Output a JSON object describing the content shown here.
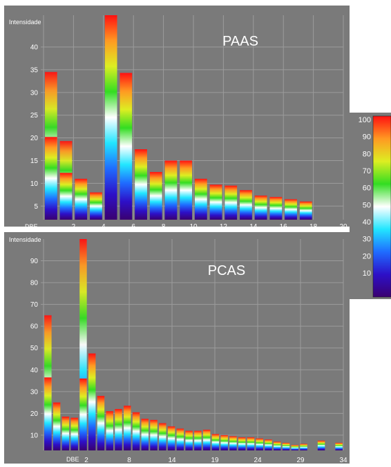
{
  "colors": {
    "panel_bg": "#7a7a7a",
    "grid": "#9c9c9c",
    "tick_text": "#ffffff",
    "title_text": "#ffffff"
  },
  "colorbar": {
    "labels": [
      "100",
      "90",
      "80",
      "70",
      "60",
      "50",
      "40",
      "30",
      "20",
      "10"
    ],
    "stops": [
      "#3a0070",
      "#2d10c8",
      "#1f6cff",
      "#22e6ff",
      "#ffffff",
      "#33dd22",
      "#ddee22",
      "#ff9922",
      "#ff1111"
    ]
  },
  "chart_data": [
    {
      "type": "bar",
      "title": "PAAS",
      "ylabel": "Intensidade",
      "xlabel": "DBE",
      "x": [
        1,
        2,
        3,
        4,
        5,
        6,
        7,
        8,
        9,
        10,
        11,
        12,
        13,
        14,
        15,
        16,
        17,
        18
      ],
      "peaks": [
        34.5,
        19.3,
        11,
        8,
        47,
        34.3,
        17.5,
        12.5,
        15,
        15,
        11,
        9.7,
        9.5,
        8.5,
        7.3,
        7,
        6.5,
        6
      ],
      "segments": [
        [
          34.5,
          20.2
        ],
        [
          19.3,
          12.3
        ],
        [
          11
        ],
        [
          8
        ],
        [
          47
        ],
        [
          34.3
        ],
        [
          17.5
        ],
        [
          12.5
        ],
        [
          15
        ],
        [
          15
        ],
        [
          11
        ],
        [
          9.7
        ],
        [
          9.5
        ],
        [
          8.5
        ],
        [
          7.3
        ],
        [
          7
        ],
        [
          6.5
        ],
        [
          6
        ]
      ],
      "xlim": [
        0,
        20
      ],
      "ylim": [
        2,
        47
      ],
      "xticks": [
        "2",
        "4",
        "6",
        "8",
        "10",
        "12",
        "14",
        "16",
        "18",
        "20"
      ],
      "yticks": [
        "5",
        "10",
        "15",
        "20",
        "25",
        "30",
        "35",
        "40"
      ],
      "grid": true
    },
    {
      "type": "bar",
      "title": "PCAS",
      "ylabel": "Intensidade",
      "xlabel": "DBE",
      "x": [
        1,
        2,
        3,
        4,
        5,
        6,
        7,
        8,
        9,
        10,
        11,
        12,
        13,
        14,
        15,
        16,
        17,
        18,
        19,
        20,
        21,
        22,
        23,
        24,
        25,
        26,
        27,
        28,
        29,
        30,
        31,
        32,
        33,
        34
      ],
      "peaks": [
        65,
        25,
        18.5,
        18,
        100,
        47.5,
        28,
        21,
        22,
        23.5,
        20.5,
        17.5,
        17,
        15.5,
        14,
        13,
        12,
        12,
        12.5,
        10.5,
        10,
        9.5,
        9,
        9,
        8.5,
        8,
        7,
        6.5,
        5.5,
        6,
        0,
        7.5,
        0,
        6.5
      ],
      "segments": [
        [
          65,
          36.5
        ],
        [
          25
        ],
        [
          18.5
        ],
        [
          18
        ],
        [
          100,
          36
        ],
        [
          47.5
        ],
        [
          28
        ],
        [
          21
        ],
        [
          22
        ],
        [
          23.5
        ],
        [
          20.5
        ],
        [
          17.5
        ],
        [
          17
        ],
        [
          15.5
        ],
        [
          14
        ],
        [
          13
        ],
        [
          12
        ],
        [
          12
        ],
        [
          12.5
        ],
        [
          10.5
        ],
        [
          10
        ],
        [
          9.5
        ],
        [
          9
        ],
        [
          9
        ],
        [
          8.5
        ],
        [
          8
        ],
        [
          7
        ],
        [
          6.5
        ],
        [
          5.5
        ],
        [
          6
        ],
        [
          0
        ],
        [
          7.5
        ],
        [
          0
        ],
        [
          6.5
        ]
      ],
      "xlim": [
        0,
        34
      ],
      "ylim": [
        3,
        100
      ],
      "xticks": [
        "2",
        "8",
        "14",
        "19",
        "24",
        "29",
        "34"
      ],
      "yticks": [
        "10",
        "20",
        "30",
        "40",
        "50",
        "60",
        "70",
        "80",
        "90"
      ],
      "grid": true
    }
  ]
}
